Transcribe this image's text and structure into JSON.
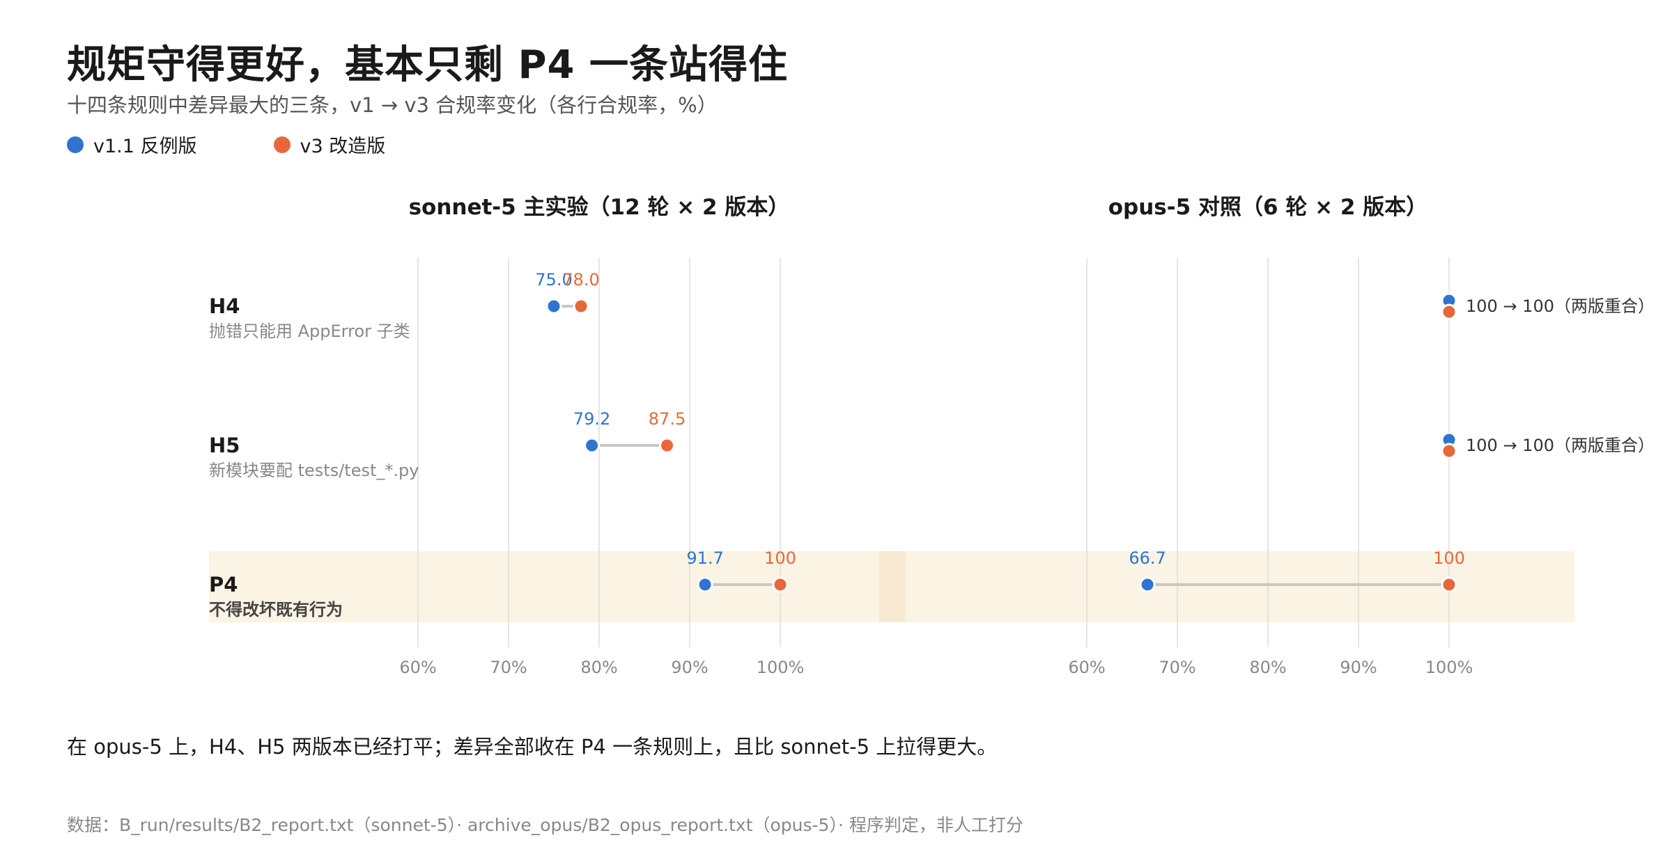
{
  "header": {
    "title": "规矩守得更好，基本只剩 P4 一条站得住",
    "subtitle": "十四条规则中差异最大的三条，v1 → v3 合规率变化（各行合规率，%）"
  },
  "legend": [
    {
      "label": "v1.1 反例版",
      "color": "#2f74d0"
    },
    {
      "label": "v3 改造版",
      "color": "#e8673a"
    }
  ],
  "chart_data": {
    "type": "dumbbell",
    "x_unit": "%",
    "xlim": [
      57.5,
      112
    ],
    "ticks": [
      60,
      70,
      80,
      90,
      100
    ],
    "tick_labels": [
      "60%",
      "70%",
      "80%",
      "90%",
      "100%"
    ],
    "panels": [
      {
        "title": "sonnet-5 主实验（12 轮 × 2 版本）",
        "rows": [
          {
            "id": "H4",
            "desc": "抛错只能用 AppError 子类",
            "v1": 75.0,
            "v3": 78.0,
            "v1_label": "75.0",
            "v3_label": "78.0",
            "overlap_note": ""
          },
          {
            "id": "H5",
            "desc": "新模块要配 tests/test_*.py",
            "v1": 79.2,
            "v3": 87.5,
            "v1_label": "79.2",
            "v3_label": "87.5",
            "overlap_note": ""
          },
          {
            "id": "P4",
            "desc": "不得改坏既有行为",
            "v1": 91.7,
            "v3": 100,
            "v1_label": "91.7",
            "v3_label": "100",
            "overlap_note": ""
          }
        ]
      },
      {
        "title": "opus-5 对照（6 轮 × 2 版本）",
        "rows": [
          {
            "id": "H4",
            "v1": 100,
            "v3": 100,
            "v1_label": "",
            "v3_label": "",
            "overlap_note": "100 → 100（两版重合）"
          },
          {
            "id": "H5",
            "v1": 100,
            "v3": 100,
            "v1_label": "",
            "v3_label": "",
            "overlap_note": "100 → 100（两版重合）"
          },
          {
            "id": "P4",
            "v1": 66.7,
            "v3": 100,
            "v1_label": "66.7",
            "v3_label": "100",
            "overlap_note": ""
          }
        ]
      }
    ],
    "highlight_row": "P4",
    "colors": {
      "v1": "#2f74d0",
      "v3": "#e8673a",
      "connector": "#c8c8c0",
      "highlight": "#fbf3e3",
      "grid": "#dedede"
    }
  },
  "footer": {
    "note": "在 opus-5 上，H4、H5 两版本已经打平；差异全部收在 P4 一条规则上，且比 sonnet-5 上拉得更大。",
    "source": "数据：B_run/results/B2_report.txt（sonnet-5）· archive_opus/B2_opus_report.txt（opus-5）· 程序判定，非人工打分"
  }
}
